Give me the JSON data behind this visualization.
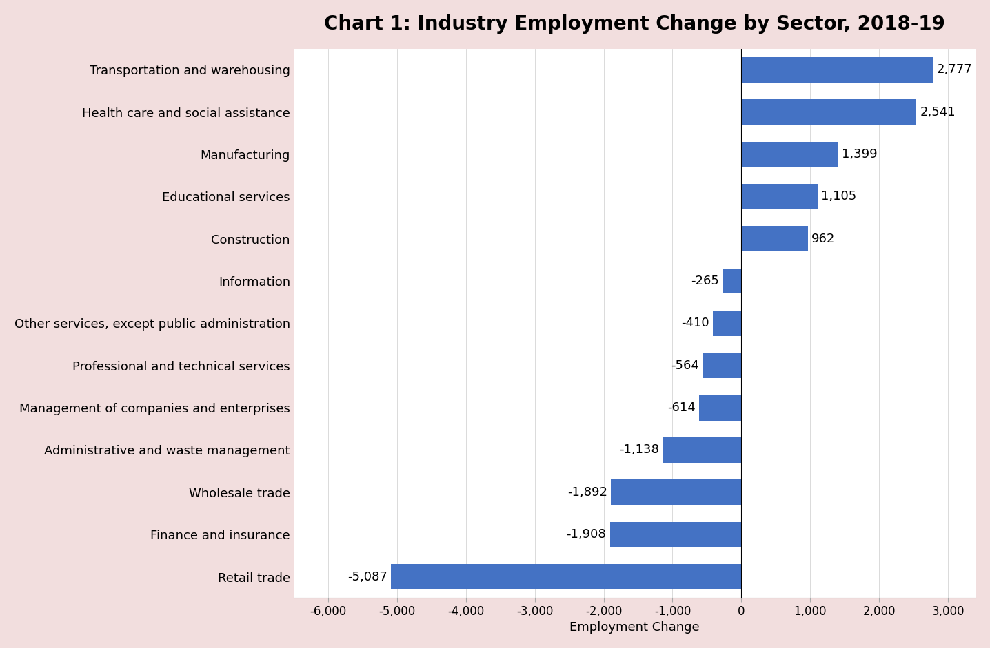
{
  "title": "Chart 1: Industry Employment Change by Sector, 2018-19",
  "categories": [
    "Retail trade",
    "Finance and insurance",
    "Wholesale trade",
    "Administrative and waste management",
    "Management of companies and enterprises",
    "Professional and technical services",
    "Other services, except public administration",
    "Information",
    "Construction",
    "Educational services",
    "Manufacturing",
    "Health care and social assistance",
    "Transportation and warehousing"
  ],
  "values": [
    -5087,
    -1908,
    -1892,
    -1138,
    -614,
    -564,
    -410,
    -265,
    962,
    1105,
    1399,
    2541,
    2777
  ],
  "bar_color": "#4472C4",
  "background_color": "#f2dede",
  "plot_background_color": "#ffffff",
  "xlabel": "Employment Change",
  "xlim": [
    -6500,
    3400
  ],
  "xticks": [
    -6000,
    -5000,
    -4000,
    -3000,
    -2000,
    -1000,
    0,
    1000,
    2000,
    3000
  ],
  "xtick_labels": [
    "-6,000",
    "-5,000",
    "-4,000",
    "-3,000",
    "-2,000",
    "-1,000",
    "0",
    "1,000",
    "2,000",
    "3,000"
  ],
  "title_fontsize": 20,
  "label_fontsize": 13,
  "tick_fontsize": 12,
  "xlabel_fontsize": 13
}
